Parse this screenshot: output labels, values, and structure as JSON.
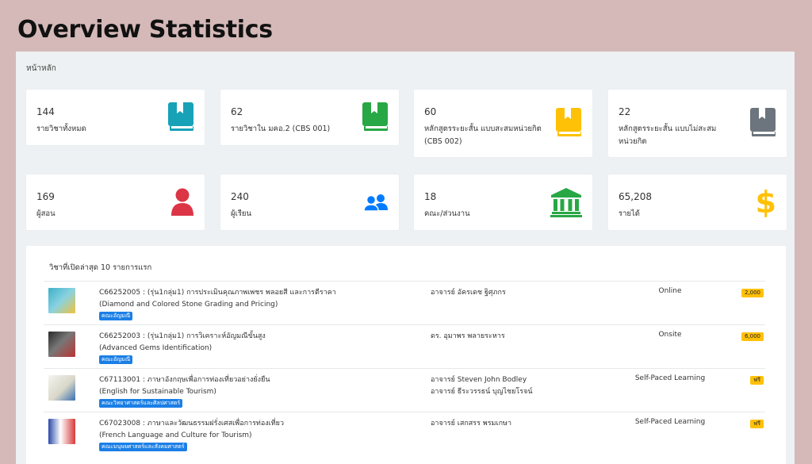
{
  "page_title": "Overview Statistics",
  "breadcrumb": "หน้าหลัก",
  "stats_row1": [
    {
      "value": "144",
      "label": "รายวิชาทั้งหมด",
      "icon": "book-icon",
      "color": "#17a2b8"
    },
    {
      "value": "62",
      "label": "รายวิชาใน มคอ.2 (CBS 001)",
      "icon": "book-icon",
      "color": "#28a745"
    },
    {
      "value": "60",
      "label": "หลักสูตรระยะสั้น แบบสะสมหน่วยกิต (CBS 002)",
      "icon": "book-icon",
      "color": "#ffc107"
    },
    {
      "value": "22",
      "label": "หลักสูตรระยะสั้น แบบไม่สะสมหน่วยกิต",
      "icon": "book-icon",
      "color": "#6c757d"
    }
  ],
  "stats_row2": [
    {
      "value": "169",
      "label": "ผู้สอน",
      "icon": "user-icon",
      "color": "#dc3545"
    },
    {
      "value": "240",
      "label": "ผู้เรียน",
      "icon": "users-icon",
      "color": "#007bff"
    },
    {
      "value": "18",
      "label": "คณะ/ส่วนงาน",
      "icon": "institution-icon",
      "color": "#28a745"
    },
    {
      "value": "65,208",
      "label": "รายได้",
      "icon": "dollar-icon",
      "color": "#ffc107"
    }
  ],
  "recent_courses": {
    "title": "วิชาที่เปิดล่าสุด 10 รายการแรก",
    "items": [
      {
        "code_title": "C66252005 : (รุ่น1กลุ่ม1) การประเมินคุณภาพเพชร พลอยสี และการตีราคา",
        "english": "(Diamond and Colored Stone Grading and Pricing)",
        "faculty": "คณะอัญมณี",
        "instructors": [
          "อาจารย์ อัครเดช ฐิศุภกร"
        ],
        "mode": "Online",
        "price": "2,000"
      },
      {
        "code_title": "C66252003 : (รุ่น1กลุ่ม1) การวิเคราะห์อัญมณีขั้นสูง",
        "english": "(Advanced Gems Identification)",
        "faculty": "คณะอัญมณี",
        "instructors": [
          "ดร. อุมาพร พลายระหาร"
        ],
        "mode": "Onsite",
        "price": "6,000"
      },
      {
        "code_title": "C67113001 : ภาษาอังกฤษเพื่อการท่องเที่ยวอย่างยั่งยืน",
        "english": "(English for Sustainable Tourism)",
        "faculty": "คณะวิทยาศาสตร์และศิลปศาสตร์",
        "instructors": [
          "อาจารย์ Steven John Bodley",
          "อาจารย์ ธีระวรรธน์ บุญไชยโรจน์"
        ],
        "mode": "Self-Paced Learning",
        "price": "ฟรี"
      },
      {
        "code_title": "C67023008 : ภาษาและวัฒนธรรมฝรั่งเศสเพื่อการท่องเที่ยว",
        "english": "(French Language and Culture for Tourism)",
        "faculty": "คณะมนุษยศาสตร์และสังคมศาสตร์",
        "instructors": [
          "อาจารย์ เสกสรร พรมเกษา"
        ],
        "mode": "Self-Paced Learning",
        "price": "ฟรี"
      }
    ]
  }
}
